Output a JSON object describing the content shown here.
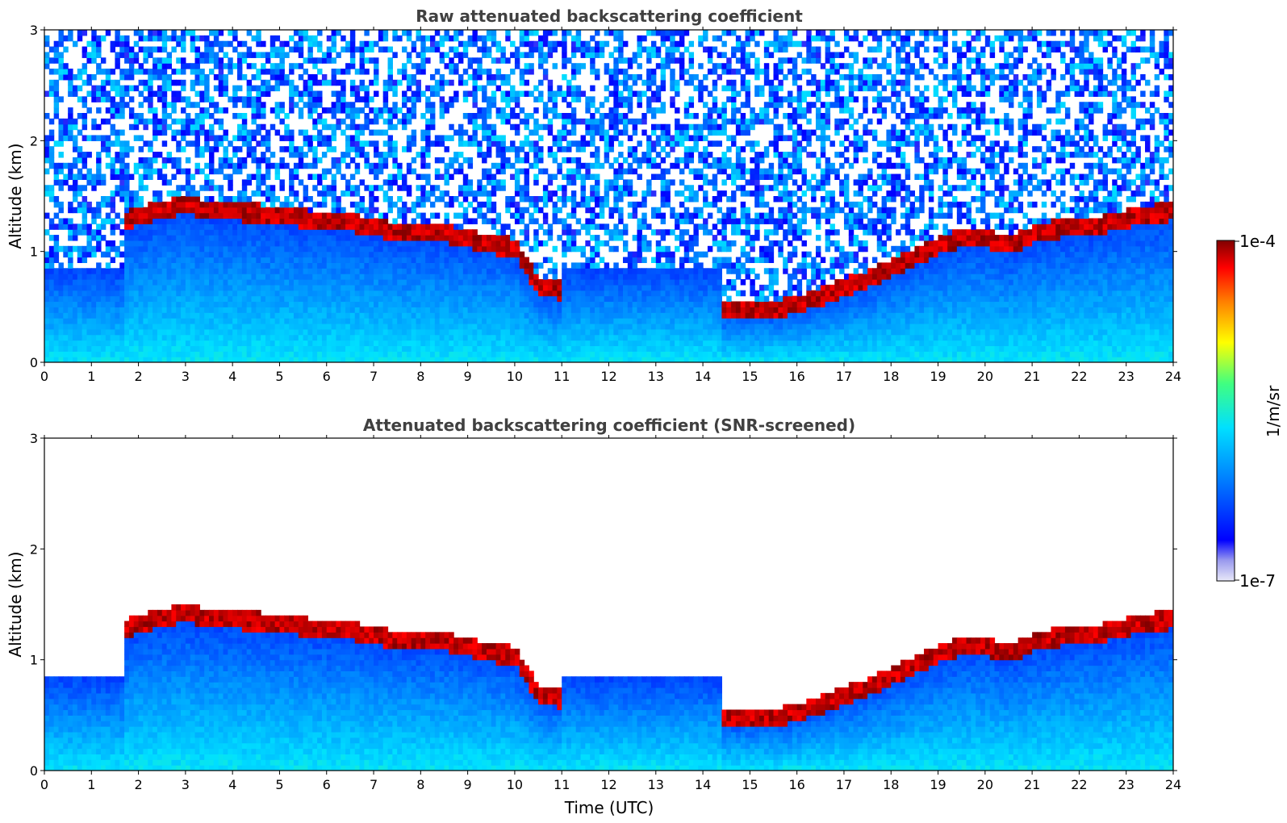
{
  "chart_data": [
    {
      "type": "heatmap",
      "title": "Raw attenuated backscattering coefficient",
      "ylabel": "Altitude (km)",
      "xlabel": "",
      "xlim": [
        0,
        24
      ],
      "ylim": [
        0,
        3
      ],
      "x_ticks": [
        "0",
        "1",
        "2",
        "3",
        "4",
        "5",
        "6",
        "7",
        "8",
        "9",
        "10",
        "11",
        "12",
        "13",
        "14",
        "15",
        "16",
        "17",
        "18",
        "19",
        "20",
        "21",
        "22",
        "23",
        "24"
      ],
      "y_ticks": [
        "0",
        "1",
        "2",
        "3"
      ],
      "grid": false,
      "screened": false,
      "layer_top_km": {
        "hour": [
          1.7,
          2.5,
          3.0,
          3.5,
          4.0,
          4.5,
          5.0,
          5.5,
          6.0,
          6.5,
          7.0,
          7.7,
          8.0,
          8.5,
          9.0,
          9.5,
          10.0,
          10.5,
          11.0,
          14.4,
          15.0,
          15.5,
          16.0,
          17.5,
          18.0,
          18.5,
          19.0,
          19.5,
          20.0,
          20.5,
          21.0,
          21.5,
          22.0,
          22.5,
          23.0,
          23.5,
          24.0
        ],
        "km": [
          1.28,
          1.38,
          1.42,
          1.38,
          1.36,
          1.35,
          1.32,
          1.3,
          1.28,
          1.26,
          1.22,
          1.17,
          1.17,
          1.16,
          1.12,
          1.06,
          1.04,
          0.7,
          0.65,
          0.48,
          0.48,
          0.48,
          0.52,
          0.75,
          0.85,
          0.95,
          1.05,
          1.12,
          1.12,
          1.05,
          1.15,
          1.2,
          1.22,
          1.24,
          1.3,
          1.34,
          1.36
        ]
      }
    },
    {
      "type": "heatmap",
      "title": "Attenuated backscattering coefficient (SNR-screened)",
      "ylabel": "Altitude (km)",
      "xlabel": "Time (UTC)",
      "xlim": [
        0,
        24
      ],
      "ylim": [
        0,
        3
      ],
      "x_ticks": [
        "0",
        "1",
        "2",
        "3",
        "4",
        "5",
        "6",
        "7",
        "8",
        "9",
        "10",
        "11",
        "12",
        "13",
        "14",
        "15",
        "16",
        "17",
        "18",
        "19",
        "20",
        "21",
        "22",
        "23",
        "24"
      ],
      "y_ticks": [
        "0",
        "1",
        "2",
        "3"
      ],
      "grid": false,
      "screened": true,
      "layer_top_km": {
        "hour": [
          1.7,
          2.5,
          3.0,
          3.5,
          4.0,
          4.5,
          5.0,
          5.5,
          6.0,
          6.5,
          7.0,
          7.7,
          8.0,
          8.5,
          9.0,
          9.5,
          10.0,
          10.5,
          11.0,
          14.4,
          15.0,
          15.5,
          16.0,
          17.5,
          18.0,
          18.5,
          19.0,
          19.5,
          20.0,
          20.5,
          21.0,
          21.5,
          22.0,
          22.5,
          23.0,
          23.5,
          24.0
        ],
        "km": [
          1.28,
          1.38,
          1.42,
          1.38,
          1.36,
          1.35,
          1.32,
          1.3,
          1.28,
          1.26,
          1.22,
          1.17,
          1.17,
          1.16,
          1.12,
          1.06,
          1.04,
          0.7,
          0.65,
          0.48,
          0.48,
          0.48,
          0.52,
          0.75,
          0.85,
          0.95,
          1.05,
          1.12,
          1.12,
          1.05,
          1.15,
          1.2,
          1.22,
          1.24,
          1.3,
          1.34,
          1.36
        ]
      }
    }
  ],
  "colorbar": {
    "label": "1/m/sr",
    "max_label": "1e-4",
    "min_label": "1e-7",
    "colormap": "jet",
    "colors": [
      "#e8e8f8",
      "#9a9aee",
      "#0000ff",
      "#0080ff",
      "#00e0ff",
      "#40ff80",
      "#ffff00",
      "#ff8000",
      "#ff0000",
      "#800000"
    ]
  }
}
